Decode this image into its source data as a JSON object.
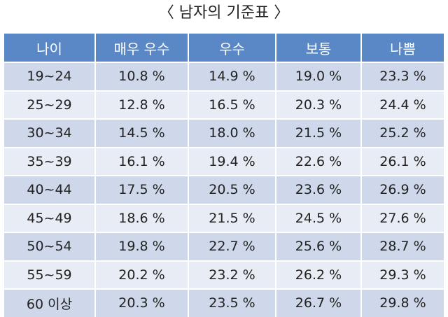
{
  "title": "〈 남자의 기준표 〉",
  "table": {
    "header": [
      "나이",
      "매우 우수",
      "우수",
      "보통",
      "나쁨"
    ],
    "rows": [
      [
        "19~24",
        "10.8 %",
        "14.9 %",
        "19.0 %",
        "23.3 %"
      ],
      [
        "25~29",
        "12.8 %",
        "16.5 %",
        "20.3 %",
        "24.4 %"
      ],
      [
        "30~34",
        "14.5 %",
        "18.0 %",
        "21.5 %",
        "25.2 %"
      ],
      [
        "35~39",
        "16.1 %",
        "19.4 %",
        "22.6 %",
        "26.1 %"
      ],
      [
        "40~44",
        "17.5 %",
        "20.5 %",
        "23.6 %",
        "26.9 %"
      ],
      [
        "45~49",
        "18.6 %",
        "21.5 %",
        "24.5 %",
        "27.6 %"
      ],
      [
        "50~54",
        "19.8 %",
        "22.7 %",
        "25.6 %",
        "28.7 %"
      ],
      [
        "55~59",
        "20.2 %",
        "23.2 %",
        "26.2 %",
        "29.3 %"
      ],
      [
        "60 이상",
        "20.3 %",
        "23.5 %",
        "26.7 %",
        "29.8 %"
      ]
    ]
  }
}
